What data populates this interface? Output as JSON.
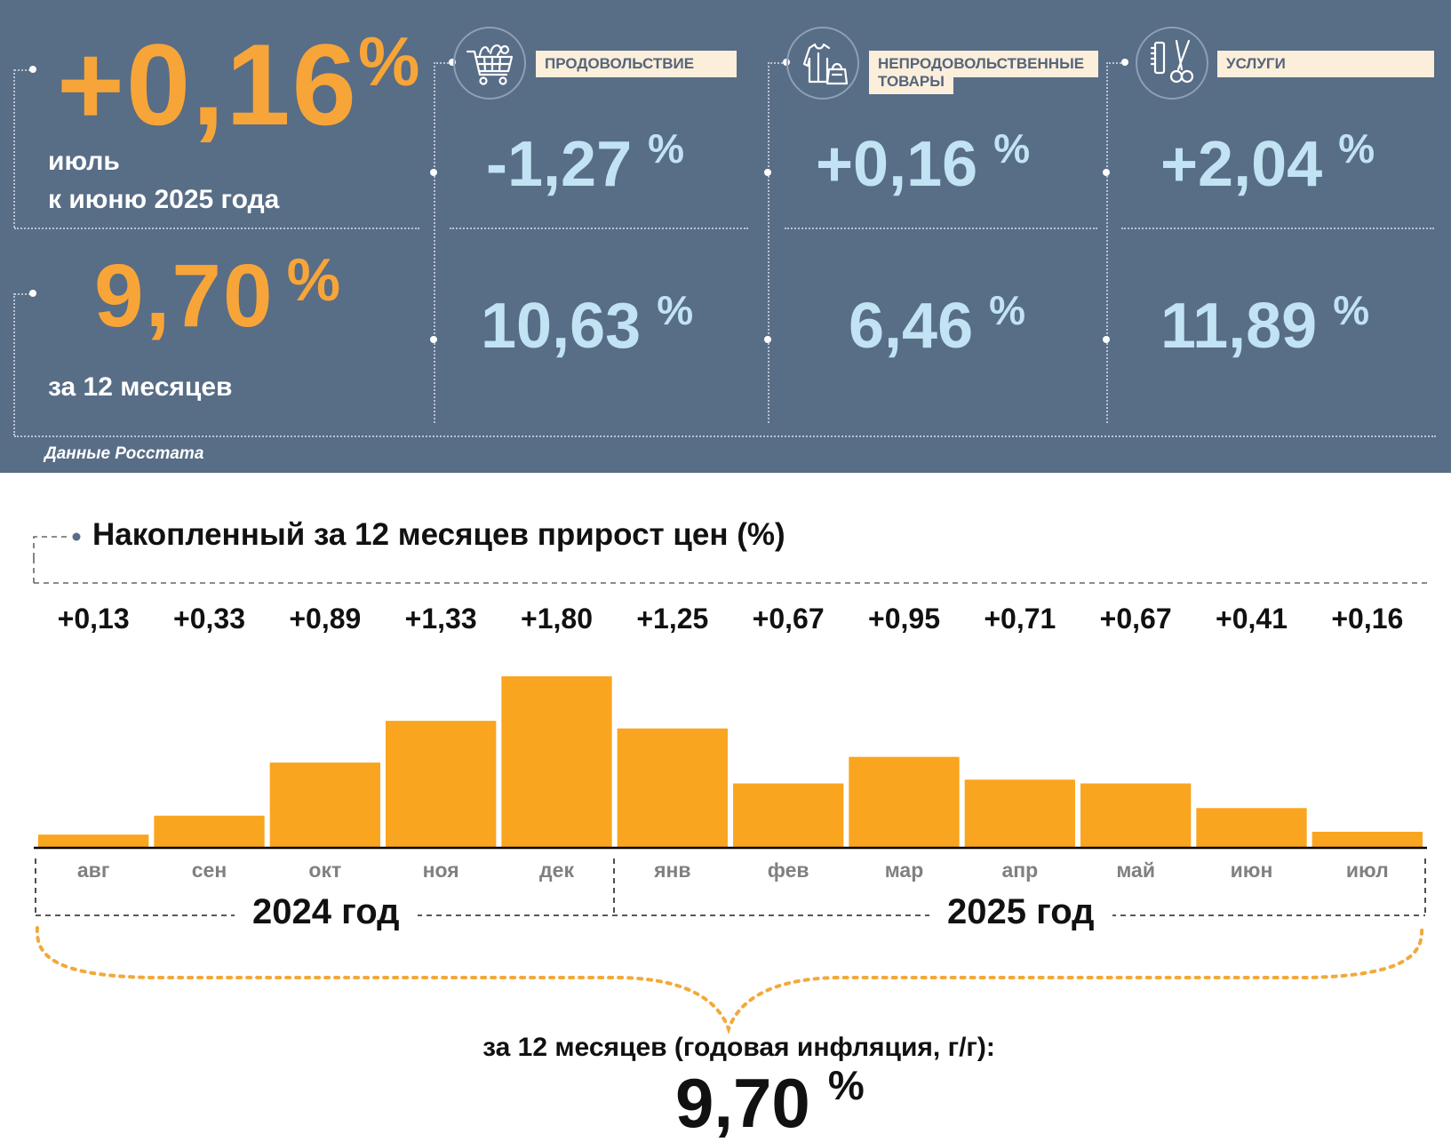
{
  "headline": {
    "monthly_value": "+0,16",
    "monthly_unit": "%",
    "monthly_label_line1": "июль",
    "monthly_label_line2": "к июню 2025 года",
    "annual_value": "9,70",
    "annual_unit": "%",
    "annual_label": "за 12 месяцев"
  },
  "categories": [
    {
      "name": "ПРОДОВОЛЬСТВИЕ",
      "icon": "shopping-cart-icon",
      "monthly": "-1,27",
      "annual": "10,63",
      "unit": "%"
    },
    {
      "name": "НЕПРОДОВОЛЬСТВЕННЫЕ ТОВАРЫ",
      "name_line1": "НЕПРОДОВОЛЬСТВЕННЫЕ",
      "name_line2": "ТОВАРЫ",
      "icon": "clothing-bag-icon",
      "monthly": "+0,16",
      "annual": "6,46",
      "unit": "%"
    },
    {
      "name": "УСЛУГИ",
      "icon": "comb-scissors-icon",
      "monthly": "+2,04",
      "annual": "11,89",
      "unit": "%"
    }
  ],
  "source": "Данные Росстата",
  "colors": {
    "panel": "#586d86",
    "accent_orange": "#f7a538",
    "value_blue": "#c1e3f3",
    "tag_bg": "#fbeedb",
    "bar": "#faa51f"
  },
  "chart_data": {
    "type": "bar",
    "title": "Накопленный за 12 месяцев прирост цен (%)",
    "categories": [
      "авг",
      "сен",
      "окт",
      "ноя",
      "дек",
      "янв",
      "фев",
      "мар",
      "апр",
      "май",
      "июн",
      "июл"
    ],
    "values": [
      0.13,
      0.33,
      0.89,
      1.33,
      1.8,
      1.25,
      0.67,
      0.95,
      0.71,
      0.67,
      0.41,
      0.16
    ],
    "value_labels": [
      "+0,13",
      "+0,33",
      "+0,89",
      "+1,33",
      "+1,80",
      "+1,25",
      "+0,67",
      "+0,95",
      "+0,71",
      "+0,67",
      "+0,41",
      "+0,16"
    ],
    "year_groups": [
      {
        "label": "2024 год",
        "months": 5
      },
      {
        "label": "2025 год",
        "months": 7
      }
    ],
    "ylim": [
      0,
      1.8
    ],
    "grid": false,
    "legend": "none",
    "total_caption": "за 12 месяцев (годовая инфляция, г/г):",
    "total_value": "9,70",
    "total_unit": "%"
  }
}
